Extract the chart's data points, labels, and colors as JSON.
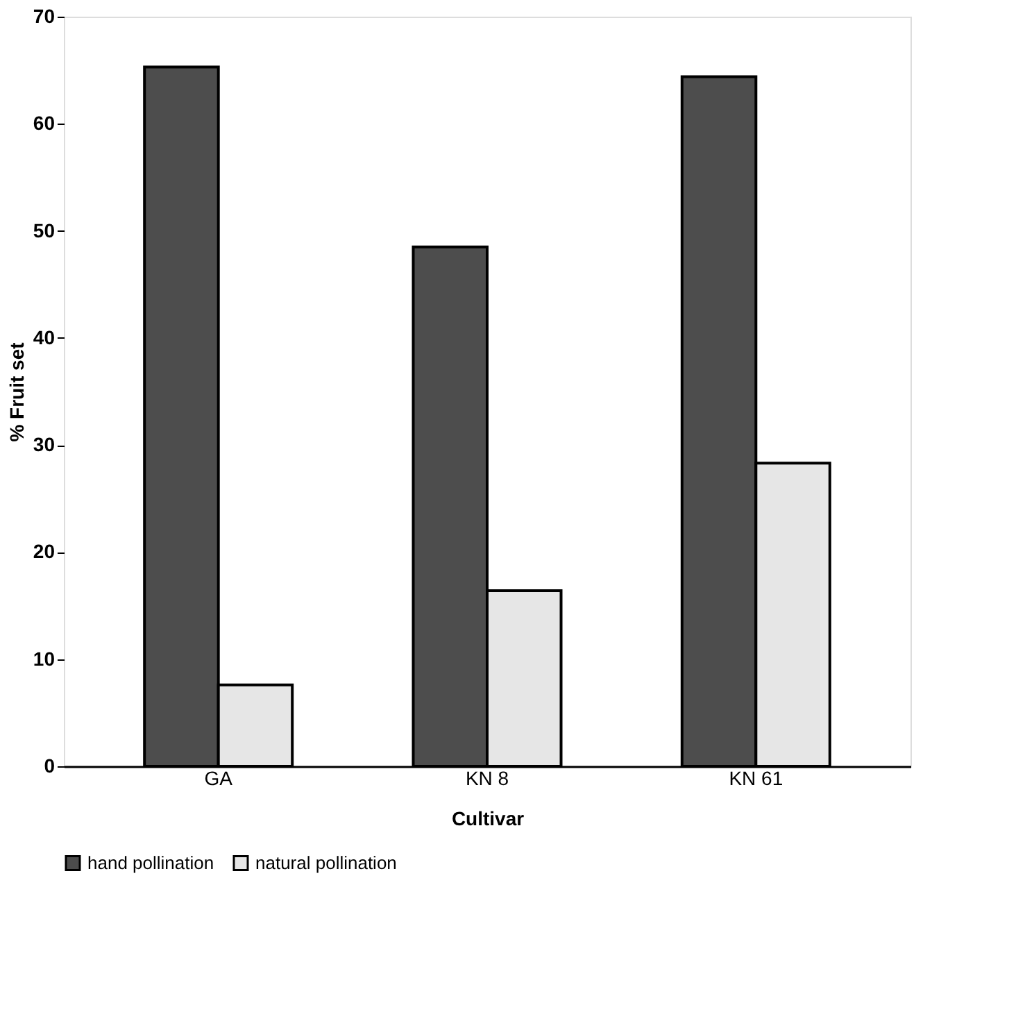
{
  "chart_data": {
    "type": "bar",
    "xlabel": "Cultivar",
    "ylabel": "% Fruit set",
    "categories": [
      "GA",
      "KN 8",
      "KN 61"
    ],
    "series": [
      {
        "name": "hand pollination",
        "color": "#4d4d4d",
        "values": [
          65.3,
          48.5,
          64.4
        ]
      },
      {
        "name": "natural pollination",
        "color": "#e6e6e6",
        "values": [
          7.6,
          16.4,
          28.3
        ]
      }
    ],
    "ylim": [
      0,
      70
    ],
    "yticks": [
      0,
      10,
      20,
      30,
      40,
      50,
      60,
      70
    ],
    "grid": false,
    "legend": "bottom"
  }
}
